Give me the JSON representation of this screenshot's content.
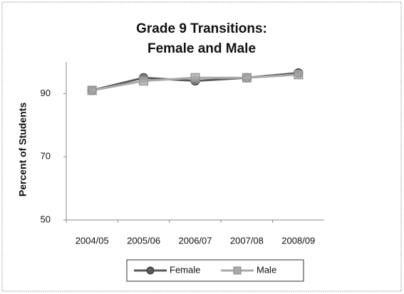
{
  "chart_data": {
    "type": "line",
    "title": [
      "Grade 9 Transitions:",
      "Female and Male"
    ],
    "y_label": "Percent of Students",
    "categories": [
      "2004/05",
      "2005/06",
      "2006/07",
      "2007/08",
      "2008/09"
    ],
    "series": [
      {
        "name": "Female",
        "color": "#5a5a5a",
        "values": [
          91,
          95,
          94,
          95,
          96.5
        ]
      },
      {
        "name": "Male",
        "color": "#aaaaaa",
        "values": [
          91,
          94,
          95,
          95,
          96
        ]
      }
    ],
    "ylim": [
      50,
      100
    ],
    "yticks": [
      50,
      70,
      90
    ],
    "grid": false,
    "legend": "bottom"
  }
}
